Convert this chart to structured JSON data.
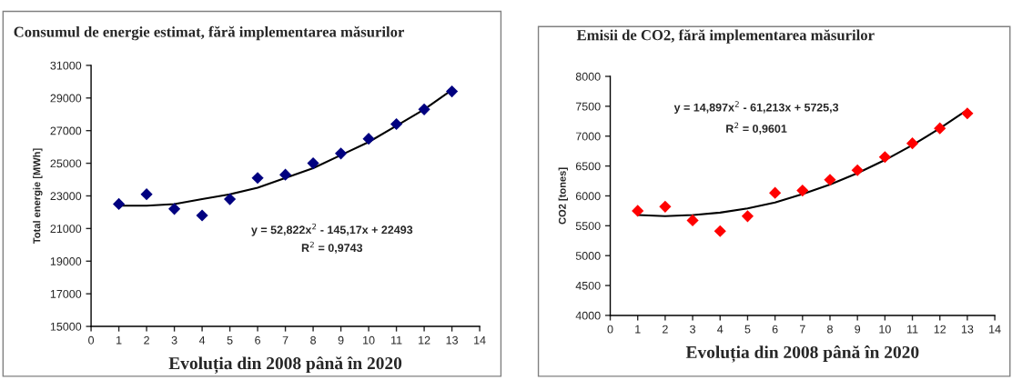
{
  "chart_data": [
    {
      "type": "scatter",
      "title": "Consumul de energie estimat, fără implementarea măsurilor",
      "xlabel": "Evoluția din 2008 până în 2020",
      "ylabel": "Total energie [MWh]",
      "marker": "diamond",
      "grid": false,
      "xlim": [
        0,
        14
      ],
      "xticks": [
        0,
        1,
        2,
        3,
        4,
        5,
        6,
        7,
        8,
        9,
        10,
        11,
        12,
        13,
        14
      ],
      "ylim": [
        15000,
        31000
      ],
      "yticks": [
        15000,
        17000,
        19000,
        21000,
        23000,
        25000,
        27000,
        29000,
        31000
      ],
      "annotations": [
        "y = 52,822x$^{2}$ - 145,17x + 22493",
        "R$^{2}$ = 0,9743"
      ],
      "series": [
        {
          "color": "#000080",
          "x": [
            1,
            2,
            3,
            4,
            5,
            6,
            7,
            8,
            9,
            10,
            11,
            12,
            13
          ],
          "values": [
            22500,
            23100,
            22200,
            21800,
            22800,
            24100,
            24300,
            25000,
            25600,
            26500,
            27400,
            28300,
            29400
          ]
        },
        {
          "type": "line",
          "color": "#000000",
          "marker": "none",
          "x": [
            1,
            2,
            3,
            4,
            5,
            6,
            7,
            8,
            9,
            10,
            11,
            12,
            13
          ],
          "values": [
            22400,
            22400,
            22500,
            22800,
            23100,
            23500,
            24100,
            24700,
            25500,
            26300,
            27300,
            28300,
            29500
          ]
        }
      ]
    },
    {
      "type": "scatter",
      "title": "Emisii de CO2, fără implementarea măsurilor",
      "xlabel": "Evoluția din 2008 până în 2020",
      "ylabel": "CO2 [tones]",
      "marker": "diamond",
      "grid": false,
      "xlim": [
        0,
        14
      ],
      "xticks": [
        0,
        1,
        2,
        3,
        4,
        5,
        6,
        7,
        8,
        9,
        10,
        11,
        12,
        13,
        14
      ],
      "ylim": [
        4000,
        8000
      ],
      "yticks": [
        4000,
        4500,
        5000,
        5500,
        6000,
        6500,
        7000,
        7500,
        8000
      ],
      "annotations": [
        "y = 14,897x$^{2}$ - 61,213x + 5725,3",
        "R$^{2}$ = 0,9601"
      ],
      "series": [
        {
          "color": "#ff0000",
          "x": [
            1,
            2,
            3,
            4,
            5,
            6,
            7,
            8,
            9,
            10,
            11,
            12,
            13
          ],
          "values": [
            5750,
            5820,
            5590,
            5410,
            5660,
            6050,
            6090,
            6270,
            6430,
            6650,
            6880,
            7130,
            7380
          ]
        },
        {
          "type": "line",
          "color": "#000000",
          "marker": "none",
          "x": [
            1,
            2,
            3,
            4,
            5,
            6,
            7,
            8,
            9,
            10,
            11,
            12,
            13
          ],
          "values": [
            5680,
            5660,
            5680,
            5720,
            5790,
            5890,
            6030,
            6190,
            6380,
            6600,
            6850,
            7130,
            7440
          ]
        }
      ]
    }
  ]
}
